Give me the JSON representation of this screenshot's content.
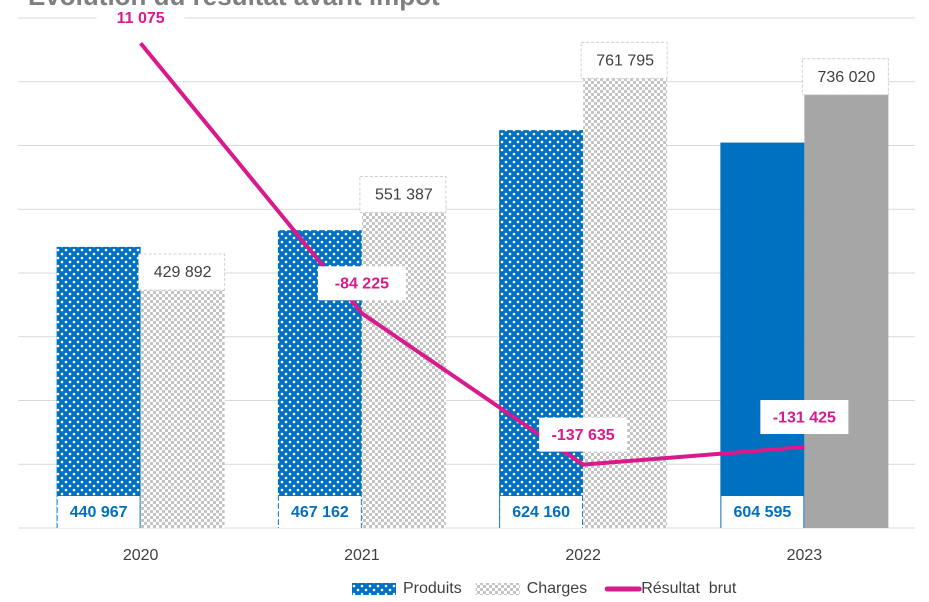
{
  "chart_data": {
    "type": "bar_line",
    "title": "Evolution du résultat avant impôt",
    "categories": [
      "2020",
      "2021",
      "2022",
      "2023"
    ],
    "series": [
      {
        "name": "Produits",
        "type": "bar",
        "color": "#0070c0",
        "fill_styles": [
          "pattern",
          "pattern",
          "pattern",
          "solid"
        ],
        "values": [
          440967,
          467162,
          624160,
          604595
        ],
        "value_labels": [
          "440 967",
          "467 162",
          "624 160",
          "604 595"
        ]
      },
      {
        "name": "Charges",
        "type": "bar",
        "color": "#a6a6a6",
        "fill_styles": [
          "pattern",
          "pattern",
          "pattern",
          "solid"
        ],
        "values": [
          429892,
          551387,
          761795,
          736020
        ],
        "value_labels": [
          "429 892",
          "551 387",
          "761 795",
          "736 020"
        ]
      },
      {
        "name": "Résultat  brut",
        "type": "line",
        "axis": "y2",
        "color": "#d9198c",
        "values": [
          11075,
          -84225,
          -137635,
          -131425
        ],
        "value_labels": [
          "11 075",
          "-84 225",
          "-137 635",
          "-131 425"
        ]
      }
    ],
    "ylim": [
      0,
      800000
    ],
    "yticks": [
      0,
      100000,
      200000,
      300000,
      400000,
      500000,
      600000,
      700000,
      800000
    ],
    "y2lim": [
      -160000,
      20000
    ],
    "grid": true,
    "legend": "bottom"
  }
}
